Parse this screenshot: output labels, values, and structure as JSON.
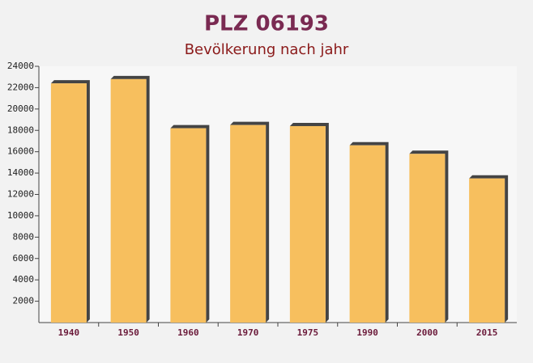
{
  "chart_data": {
    "type": "bar",
    "title": "PLZ 06193",
    "subtitle": "Bevölkerung nach jahr",
    "categories": [
      "1940",
      "1950",
      "1960",
      "1970",
      "1975",
      "1990",
      "2000",
      "2015"
    ],
    "values": [
      22400,
      22800,
      18200,
      18500,
      18400,
      16600,
      15800,
      13500
    ],
    "color": "#f7bf5e",
    "ylim": [
      0,
      24000
    ],
    "yticks": [
      2000,
      4000,
      6000,
      8000,
      10000,
      12000,
      14000,
      16000,
      18000,
      20000,
      22000,
      24000
    ]
  }
}
